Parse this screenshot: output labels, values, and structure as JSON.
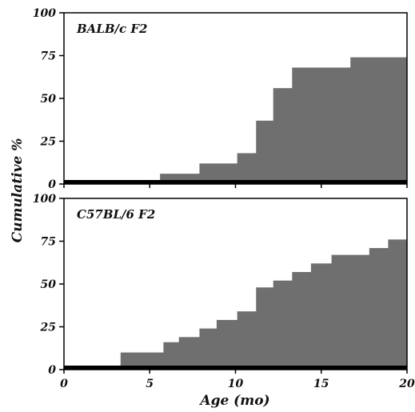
{
  "figure": {
    "ylabel": "Cumulative %",
    "xlabel": "Age (mo)"
  },
  "colors": {
    "fill": "#6f6f6f",
    "frame": "#000000",
    "baseline": "#000000"
  },
  "chart_data": [
    {
      "type": "area",
      "title": "BALB/c F2",
      "step": true,
      "xlim": [
        0,
        20
      ],
      "ylim": [
        0,
        100
      ],
      "xticks": [
        0,
        5,
        10,
        15,
        20
      ],
      "yticks": [
        0,
        25,
        50,
        75,
        100
      ],
      "x": [
        0,
        5.6,
        7.9,
        10.1,
        11.2,
        12.2,
        13.3,
        16.7,
        20
      ],
      "values": [
        0,
        6,
        12,
        18,
        37,
        56,
        68,
        74,
        74
      ]
    },
    {
      "type": "area",
      "title": "C57BL/6 F2",
      "step": true,
      "xlim": [
        0,
        20
      ],
      "ylim": [
        0,
        100
      ],
      "xticks": [
        0,
        5,
        10,
        15,
        20
      ],
      "yticks": [
        0,
        25,
        50,
        75,
        100
      ],
      "x": [
        0,
        3.3,
        5.8,
        6.7,
        7.9,
        8.9,
        10.1,
        11.2,
        12.2,
        13.3,
        14.4,
        15.6,
        17.8,
        18.9,
        20
      ],
      "values": [
        0,
        10,
        16,
        19,
        24,
        29,
        34,
        48,
        52,
        57,
        62,
        67,
        71,
        76,
        76
      ]
    }
  ]
}
